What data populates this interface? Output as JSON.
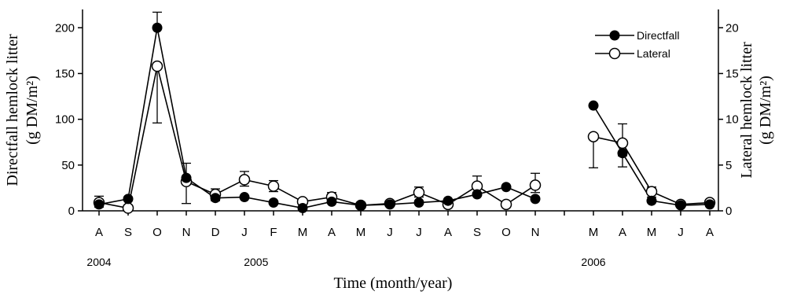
{
  "chart_data": {
    "type": "line",
    "xlabel": "Time (month/year)",
    "ylabel_left_line1": "Directfall hemlock litter",
    "ylabel_left_line2": "(g DM/m²)",
    "ylabel_right_line1": "Lateral hemlock litter",
    "ylabel_right_line2": "(g DM/m²)",
    "categories": [
      "A",
      "S",
      "O",
      "N",
      "D",
      "J",
      "F",
      "M",
      "A",
      "M",
      "J",
      "J",
      "A",
      "S",
      "O",
      "N",
      "M",
      "A",
      "M",
      "J",
      "A"
    ],
    "category_slots": [
      0,
      1,
      2,
      3,
      4,
      5,
      6,
      7,
      8,
      9,
      10,
      11,
      12,
      13,
      14,
      15,
      17,
      18,
      19,
      20,
      21
    ],
    "year_labels": [
      {
        "label": "2004",
        "slot": 0
      },
      {
        "label": "2005",
        "slot": 5.4
      },
      {
        "label": "2006",
        "slot": 17
      }
    ],
    "ylim_left": [
      0,
      220
    ],
    "yticks_left": [
      0,
      50,
      100,
      150,
      200
    ],
    "ylim_right": [
      0,
      22
    ],
    "yticks_right": [
      0,
      5,
      10,
      15,
      20
    ],
    "series": [
      {
        "name": "Directfall",
        "axis": "left",
        "marker": "filled",
        "segments": [
          [
            {
              "slot": 0,
              "y": 7
            },
            {
              "slot": 1,
              "y": 13
            },
            {
              "slot": 2,
              "y": 200
            },
            {
              "slot": 3,
              "y": 36
            },
            {
              "slot": 4,
              "y": 14
            },
            {
              "slot": 5,
              "y": 15
            },
            {
              "slot": 6,
              "y": 9
            },
            {
              "slot": 7,
              "y": 3
            },
            {
              "slot": 8,
              "y": 10
            },
            {
              "slot": 9,
              "y": 6
            },
            {
              "slot": 10,
              "y": 7
            },
            {
              "slot": 11,
              "y": 9
            },
            {
              "slot": 12,
              "y": 11
            },
            {
              "slot": 13,
              "y": 18
            },
            {
              "slot": 14,
              "y": 26
            },
            {
              "slot": 15,
              "y": 13
            }
          ],
          [
            {
              "slot": 17,
              "y": 115
            },
            {
              "slot": 18,
              "y": 63
            },
            {
              "slot": 19,
              "y": 11
            },
            {
              "slot": 20,
              "y": 6
            },
            {
              "slot": 21,
              "y": 7
            }
          ]
        ],
        "errors": [
          {
            "slot": 2,
            "low": 200,
            "high": 217
          },
          {
            "slot": 3,
            "low": 36,
            "high": 52
          },
          {
            "slot": 18,
            "low": 48,
            "high": 63
          }
        ]
      },
      {
        "name": "Lateral",
        "axis": "right",
        "marker": "open",
        "segments": [
          [
            {
              "slot": 0,
              "y": 0.9
            },
            {
              "slot": 1,
              "y": 0.3
            },
            {
              "slot": 2,
              "y": 15.8
            },
            {
              "slot": 3,
              "y": 3.2
            },
            {
              "slot": 4,
              "y": 1.8
            },
            {
              "slot": 5,
              "y": 3.4
            },
            {
              "slot": 6,
              "y": 2.7
            },
            {
              "slot": 7,
              "y": 1.0
            },
            {
              "slot": 8,
              "y": 1.5
            },
            {
              "slot": 9,
              "y": 0.6
            },
            {
              "slot": 10,
              "y": 0.8
            },
            {
              "slot": 11,
              "y": 2.0
            },
            {
              "slot": 12,
              "y": 0.7
            },
            {
              "slot": 13,
              "y": 2.7
            },
            {
              "slot": 14,
              "y": 0.7
            },
            {
              "slot": 15,
              "y": 2.8
            }
          ],
          [
            {
              "slot": 17,
              "y": 8.1
            },
            {
              "slot": 18,
              "y": 7.4
            },
            {
              "slot": 19,
              "y": 2.1
            },
            {
              "slot": 20,
              "y": 0.7
            },
            {
              "slot": 21,
              "y": 0.9
            }
          ]
        ],
        "errors": [
          {
            "slot": 0,
            "low": 0.4,
            "high": 1.6
          },
          {
            "slot": 2,
            "low": 9.6,
            "high": 15.8
          },
          {
            "slot": 3,
            "low": 0.8,
            "high": 3.2
          },
          {
            "slot": 4,
            "low": 1.1,
            "high": 2.4
          },
          {
            "slot": 5,
            "low": 2.7,
            "high": 4.3
          },
          {
            "slot": 6,
            "low": 2.1,
            "high": 3.3
          },
          {
            "slot": 8,
            "low": 1.0,
            "high": 2.0
          },
          {
            "slot": 11,
            "low": 1.5,
            "high": 2.6
          },
          {
            "slot": 13,
            "low": 2.0,
            "high": 3.8
          },
          {
            "slot": 15,
            "low": 2.0,
            "high": 4.1
          },
          {
            "slot": 17,
            "low": 4.7,
            "high": 8.1
          },
          {
            "slot": 18,
            "low": 6.0,
            "high": 9.5
          },
          {
            "slot": 19,
            "low": 1.5,
            "high": 2.6
          }
        ]
      }
    ],
    "legend_placement": "top-right",
    "grid": false
  }
}
